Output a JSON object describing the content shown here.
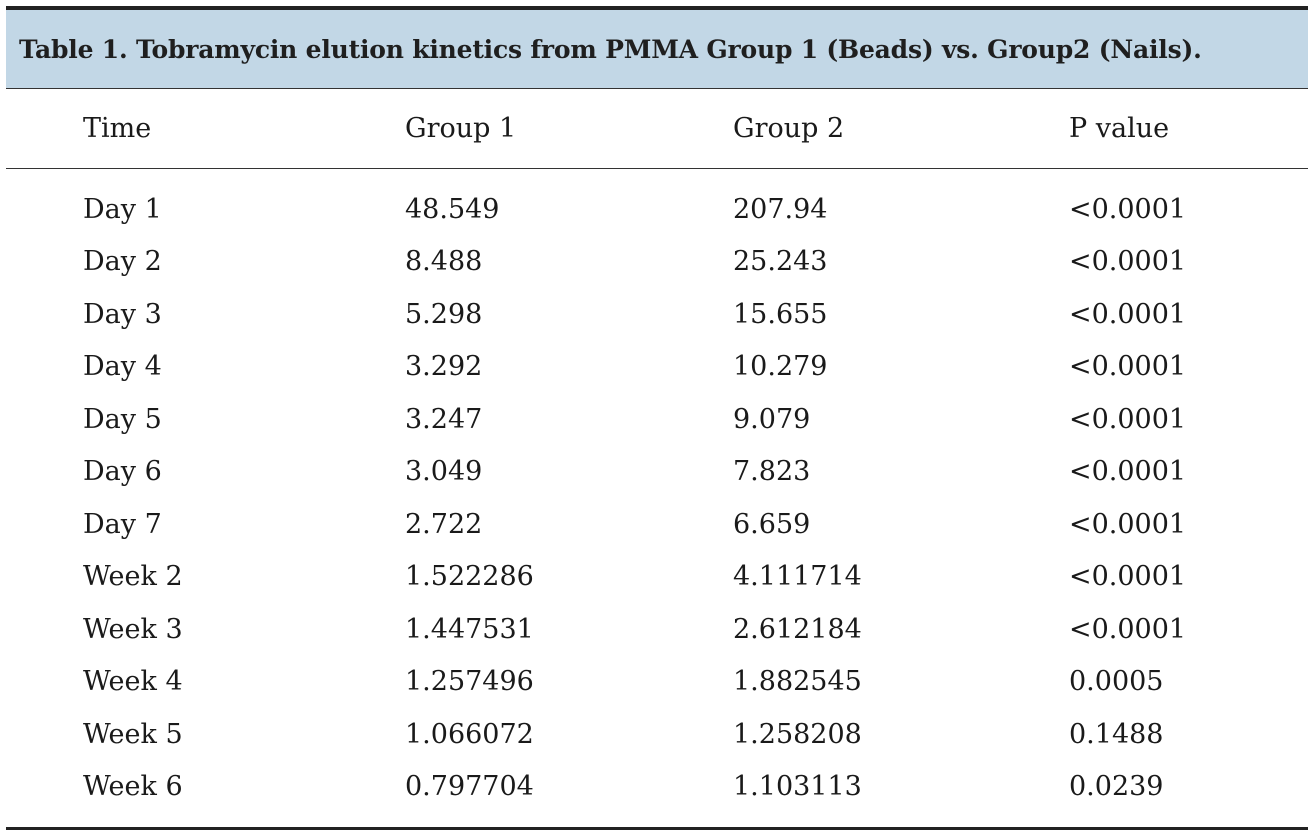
{
  "table": {
    "caption": "Table 1. Tobramycin elution kinetics from PMMA Group 1 (Beads) vs. Group2 (Nails).",
    "headers": [
      "Time",
      "Group 1",
      "Group 2",
      "P value"
    ],
    "rows": [
      [
        "Day 1",
        "48.549",
        "207.94",
        "<0.0001"
      ],
      [
        "Day 2",
        "8.488",
        "25.243",
        "<0.0001"
      ],
      [
        "Day 3",
        "5.298",
        "15.655",
        "<0.0001"
      ],
      [
        "Day 4",
        "3.292",
        "10.279",
        "<0.0001"
      ],
      [
        "Day 5",
        "3.247",
        "9.079",
        "<0.0001"
      ],
      [
        "Day 6",
        "3.049",
        "7.823",
        "<0.0001"
      ],
      [
        "Day 7",
        "2.722",
        "6.659",
        "<0.0001"
      ],
      [
        "Week 2",
        "1.522286",
        "4.111714",
        "<0.0001"
      ],
      [
        "Week 3",
        "1.447531",
        "2.612184",
        "<0.0001"
      ],
      [
        "Week 4",
        "1.257496",
        "1.882545",
        "0.0005"
      ],
      [
        "Week 5",
        "1.066072",
        "1.258208",
        "0.1488"
      ],
      [
        "Week 6",
        "0.797704",
        "1.103113",
        "0.0239"
      ]
    ]
  },
  "colors": {
    "caption_background": "#c2d7e6",
    "rule": "#222222"
  }
}
